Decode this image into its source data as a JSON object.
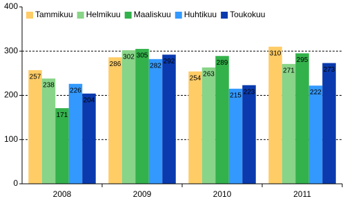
{
  "chart_data": {
    "type": "bar",
    "categories": [
      "2008",
      "2009",
      "2010",
      "2011"
    ],
    "series": [
      {
        "name": "Tammikuu",
        "color": "#ffcc66",
        "values": [
          257,
          286,
          254,
          310
        ]
      },
      {
        "name": "Helmikuu",
        "color": "#88d488",
        "values": [
          238,
          302,
          263,
          271
        ]
      },
      {
        "name": "Maaliskuu",
        "color": "#33b14a",
        "values": [
          171,
          305,
          289,
          295
        ]
      },
      {
        "name": "Huhtikuu",
        "color": "#3399ff",
        "values": [
          226,
          282,
          215,
          222
        ]
      },
      {
        "name": "Toukokuu",
        "color": "#0a3aae",
        "values": [
          204,
          292,
          223,
          273
        ]
      }
    ],
    "ylim": [
      0,
      400
    ],
    "yticks": [
      0,
      100,
      200,
      300,
      400
    ],
    "grid": true,
    "legend": "top-left",
    "data_labels": true
  }
}
